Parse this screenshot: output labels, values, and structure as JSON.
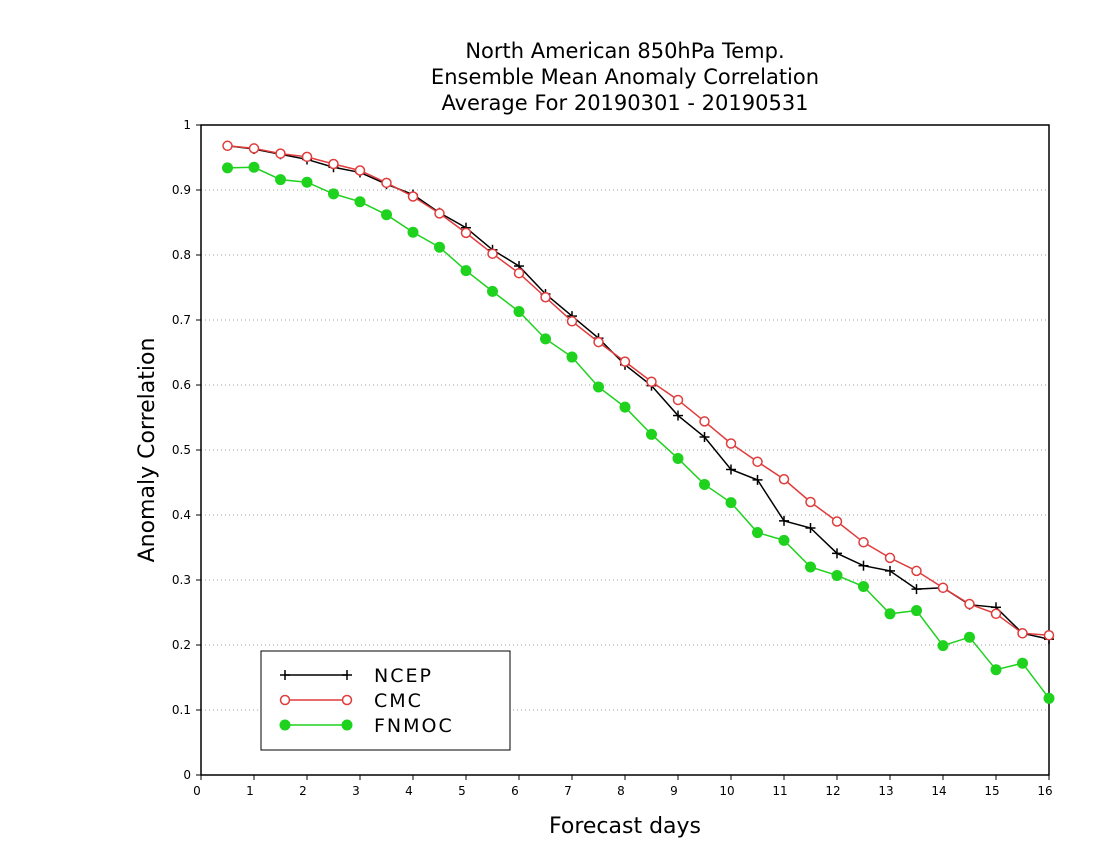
{
  "chart_data": {
    "type": "line",
    "title": [
      "North American 850hPa Temp.",
      "Ensemble Mean Anomaly Correlation",
      "Average For 20190301 - 20190531"
    ],
    "xlabel": "Forecast days",
    "ylabel": "Anomaly Correlation",
    "xlim": [
      0,
      16
    ],
    "ylim": [
      0,
      1
    ],
    "x_ticks": [
      0,
      1,
      2,
      3,
      4,
      5,
      6,
      7,
      8,
      9,
      10,
      11,
      12,
      13,
      14,
      15,
      16
    ],
    "y_ticks": [
      "0",
      "0.1",
      "0.2",
      "0.3",
      "0.4",
      "0.5",
      "0.6",
      "0.7",
      "0.8",
      "0.9",
      "1"
    ],
    "grid": "horizontal dotted",
    "legend_position": "bottom-left",
    "x": [
      0.5,
      1,
      1.5,
      2,
      2.5,
      3,
      3.5,
      4,
      4.5,
      5,
      5.5,
      6,
      6.5,
      7,
      7.5,
      8,
      8.5,
      9,
      9.5,
      10,
      10.5,
      11,
      11.5,
      12,
      12.5,
      13,
      13.5,
      14,
      14.5,
      15,
      15.5,
      16
    ],
    "series": [
      {
        "name": "NCEP",
        "color": "#000000",
        "marker": "plus",
        "values": [
          0.968,
          0.963,
          0.955,
          0.947,
          0.935,
          0.927,
          0.909,
          0.893,
          0.865,
          0.842,
          0.808,
          0.783,
          0.74,
          0.706,
          0.672,
          0.631,
          0.599,
          0.553,
          0.52,
          0.47,
          0.454,
          0.391,
          0.38,
          0.341,
          0.322,
          0.314,
          0.286,
          0.288,
          0.262,
          0.258,
          0.218,
          0.209
        ]
      },
      {
        "name": "CMC",
        "color": "#e03c3c",
        "marker": "open-circle",
        "values": [
          0.968,
          0.964,
          0.956,
          0.951,
          0.94,
          0.93,
          0.911,
          0.89,
          0.864,
          0.834,
          0.802,
          0.772,
          0.735,
          0.698,
          0.666,
          0.636,
          0.605,
          0.577,
          0.544,
          0.51,
          0.482,
          0.455,
          0.42,
          0.39,
          0.358,
          0.334,
          0.314,
          0.288,
          0.263,
          0.248,
          0.218,
          0.215
        ]
      },
      {
        "name": "FNMOC",
        "color": "#1ed21e",
        "marker": "filled-circle",
        "values": [
          0.934,
          0.935,
          0.916,
          0.912,
          0.894,
          0.882,
          0.862,
          0.835,
          0.812,
          0.776,
          0.744,
          0.713,
          0.671,
          0.643,
          0.597,
          0.566,
          0.524,
          0.487,
          0.447,
          0.419,
          0.373,
          0.361,
          0.32,
          0.307,
          0.29,
          0.248,
          0.253,
          0.199,
          0.212,
          0.162,
          0.172,
          0.118
        ]
      }
    ]
  }
}
